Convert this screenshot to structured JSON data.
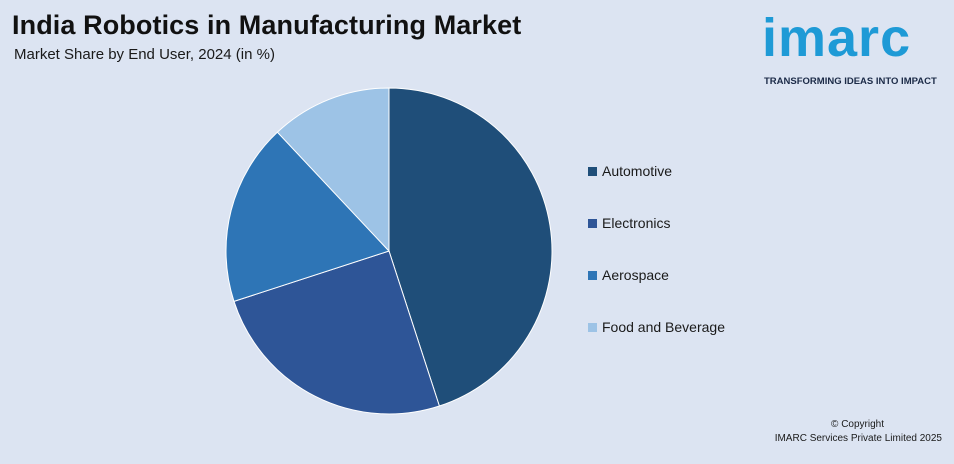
{
  "header": {
    "title": "India Robotics in Manufacturing Market",
    "subtitle": "Market Share by End User, 2024 (in %)"
  },
  "logo": {
    "word": "imarc",
    "tagline": "TRANSFORMING IDEAS INTO IMPACT",
    "color": "#1e9ad6"
  },
  "chart_data": {
    "type": "pie",
    "title": "India Robotics in Manufacturing Market",
    "subtitle": "Market Share by End User, 2024 (in %)",
    "categories": [
      "Automotive",
      "Electronics",
      "Aerospace",
      "Food and Beverage"
    ],
    "values": [
      45,
      25,
      18,
      12
    ],
    "colors": [
      "#1f4e79",
      "#2e5597",
      "#2e75b6",
      "#9dc3e6"
    ],
    "legend_position": "right",
    "start_angle": "12 o'clock, clockwise"
  },
  "footer": {
    "copyright_line1": "© Copyright",
    "copyright_line2": "IMARC Services Private Limited 2025"
  }
}
